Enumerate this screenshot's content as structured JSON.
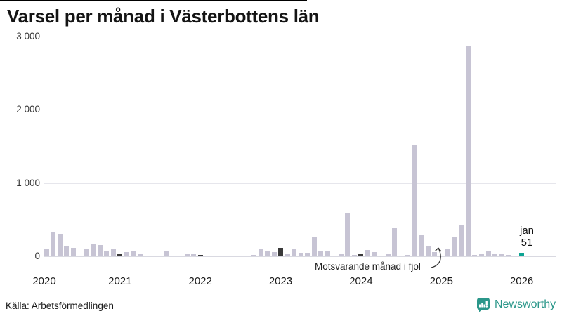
{
  "title": "Varsel per månad i Västerbottens län",
  "annotation": "Motsvarande månad i fjol",
  "current_point_label": {
    "line1": "jan",
    "line2": "51"
  },
  "footer": {
    "source": "Källa: Arbetsförmedlingen",
    "brand": "Newsworthy"
  },
  "colors": {
    "bar_default": "#c7c4d4",
    "bar_lastyear": "#3a3a3a",
    "bar_current": "#0ca493",
    "grid": "#e6e6ec",
    "brand": "#2b978a",
    "accent_line": "#000000"
  },
  "chart_data": {
    "type": "bar",
    "title": "Varsel per månad i Västerbottens län",
    "xlabel": "",
    "ylabel": "",
    "ylim": [
      0,
      3000
    ],
    "grid": "horizontal",
    "y_ticks": [
      {
        "value": 0,
        "label": "0"
      },
      {
        "value": 1000,
        "label": "1 000"
      },
      {
        "value": 2000,
        "label": "2 000"
      },
      {
        "value": 3000,
        "label": "3 000"
      }
    ],
    "x_year_labels": [
      "2020",
      "2021",
      "2022",
      "2023",
      "2024",
      "2025",
      "2026"
    ],
    "months": [
      [
        "2020-02",
        100,
        "default"
      ],
      [
        "2020-03",
        335,
        "default"
      ],
      [
        "2020-04",
        305,
        "default"
      ],
      [
        "2020-05",
        140,
        "default"
      ],
      [
        "2020-06",
        115,
        "default"
      ],
      [
        "2020-07",
        5,
        "default"
      ],
      [
        "2020-08",
        100,
        "default"
      ],
      [
        "2020-09",
        165,
        "default"
      ],
      [
        "2020-10",
        155,
        "default"
      ],
      [
        "2020-11",
        70,
        "default"
      ],
      [
        "2020-12",
        105,
        "default"
      ],
      [
        "2021-01",
        38,
        "lastyear"
      ],
      [
        "2021-02",
        58,
        "default"
      ],
      [
        "2021-03",
        77,
        "default"
      ],
      [
        "2021-04",
        30,
        "default"
      ],
      [
        "2021-05",
        10,
        "default"
      ],
      [
        "2021-06",
        0,
        "default"
      ],
      [
        "2021-07",
        0,
        "default"
      ],
      [
        "2021-08",
        77,
        "default"
      ],
      [
        "2021-09",
        0,
        "default"
      ],
      [
        "2021-10",
        10,
        "default"
      ],
      [
        "2021-11",
        25,
        "default"
      ],
      [
        "2021-12",
        30,
        "default"
      ],
      [
        "2022-01",
        22,
        "lastyear"
      ],
      [
        "2022-02",
        0,
        "default"
      ],
      [
        "2022-03",
        10,
        "default"
      ],
      [
        "2022-04",
        0,
        "default"
      ],
      [
        "2022-05",
        0,
        "default"
      ],
      [
        "2022-06",
        10,
        "default"
      ],
      [
        "2022-07",
        10,
        "default"
      ],
      [
        "2022-08",
        0,
        "default"
      ],
      [
        "2022-09",
        19,
        "default"
      ],
      [
        "2022-10",
        96,
        "default"
      ],
      [
        "2022-11",
        77,
        "default"
      ],
      [
        "2022-12",
        58,
        "default"
      ],
      [
        "2023-01",
        115,
        "lastyear"
      ],
      [
        "2023-02",
        38,
        "default"
      ],
      [
        "2023-03",
        106,
        "default"
      ],
      [
        "2023-04",
        48,
        "default"
      ],
      [
        "2023-05",
        48,
        "default"
      ],
      [
        "2023-06",
        260,
        "default"
      ],
      [
        "2023-07",
        77,
        "default"
      ],
      [
        "2023-08",
        77,
        "default"
      ],
      [
        "2023-09",
        10,
        "default"
      ],
      [
        "2023-10",
        30,
        "default"
      ],
      [
        "2023-11",
        590,
        "default"
      ],
      [
        "2023-12",
        20,
        "default"
      ],
      [
        "2024-01",
        29,
        "lastyear"
      ],
      [
        "2024-02",
        87,
        "default"
      ],
      [
        "2024-03",
        58,
        "default"
      ],
      [
        "2024-04",
        10,
        "default"
      ],
      [
        "2024-05",
        38,
        "default"
      ],
      [
        "2024-06",
        385,
        "default"
      ],
      [
        "2024-07",
        10,
        "default"
      ],
      [
        "2024-08",
        19,
        "default"
      ],
      [
        "2024-09",
        1520,
        "default"
      ],
      [
        "2024-10",
        290,
        "default"
      ],
      [
        "2024-11",
        144,
        "default"
      ],
      [
        "2024-12",
        58,
        "default"
      ],
      [
        "2025-01",
        0,
        "lastyear"
      ],
      [
        "2025-02",
        96,
        "default"
      ],
      [
        "2025-03",
        270,
        "default"
      ],
      [
        "2025-04",
        430,
        "default"
      ],
      [
        "2025-05",
        2870,
        "default"
      ],
      [
        "2025-06",
        20,
        "default"
      ],
      [
        "2025-07",
        40,
        "default"
      ],
      [
        "2025-08",
        75,
        "default"
      ],
      [
        "2025-09",
        30,
        "default"
      ],
      [
        "2025-10",
        30,
        "default"
      ],
      [
        "2025-11",
        20,
        "default"
      ],
      [
        "2025-12",
        5,
        "default"
      ],
      [
        "2026-01",
        51,
        "current"
      ]
    ]
  }
}
